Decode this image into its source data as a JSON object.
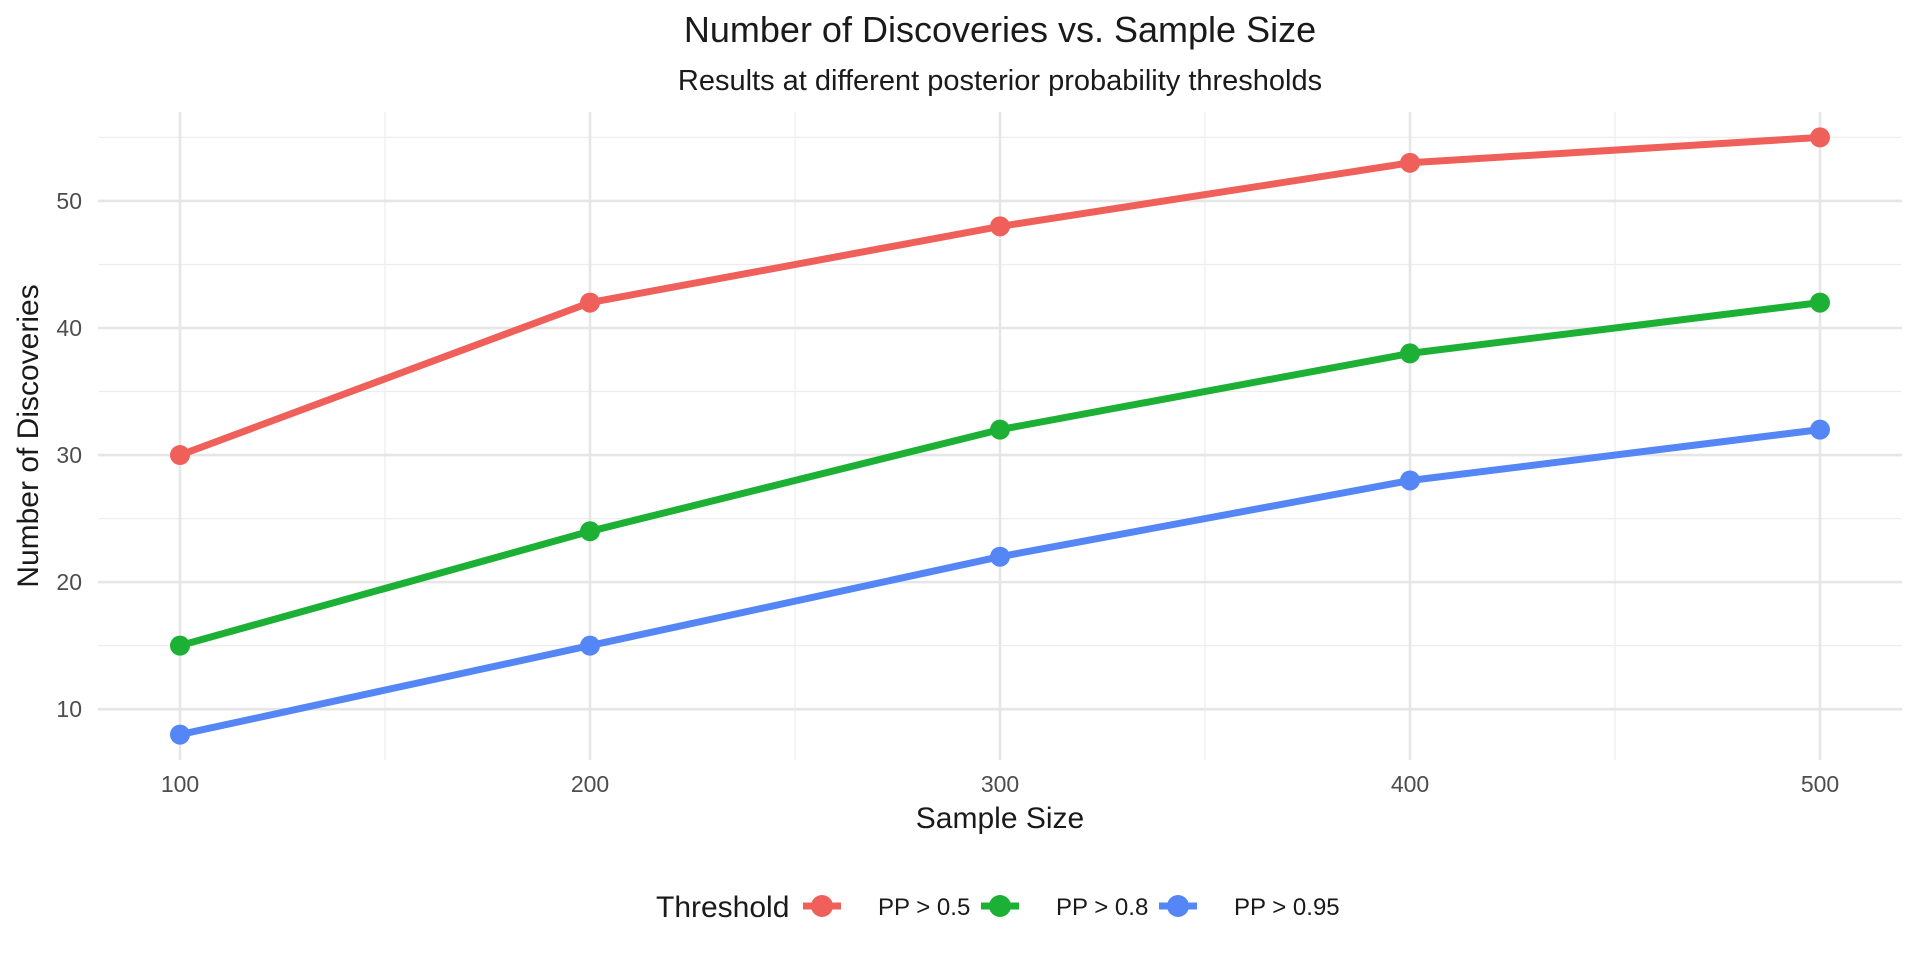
{
  "chart_data": {
    "type": "line",
    "title": "Number of Discoveries vs. Sample Size",
    "subtitle": "Results at different posterior probability thresholds",
    "xlabel": "Sample Size",
    "ylabel": "Number of Discoveries",
    "x": [
      100,
      200,
      300,
      400,
      500
    ],
    "xlim": [
      80,
      520
    ],
    "ylim": [
      6,
      57
    ],
    "x_ticks": [
      100,
      200,
      300,
      400,
      500
    ],
    "y_ticks": [
      10,
      20,
      30,
      40,
      50
    ],
    "grid": true,
    "legend": {
      "title": "Threshold",
      "position": "bottom"
    },
    "series": [
      {
        "name": "PP > 0.5",
        "color": "#f0605a",
        "values": [
          30,
          42,
          48,
          53,
          55
        ]
      },
      {
        "name": "PP > 0.8",
        "color": "#1cb034",
        "values": [
          15,
          24,
          32,
          38,
          42
        ]
      },
      {
        "name": "PP > 0.95",
        "color": "#5586f5",
        "values": [
          8,
          15,
          22,
          28,
          32
        ]
      }
    ]
  }
}
